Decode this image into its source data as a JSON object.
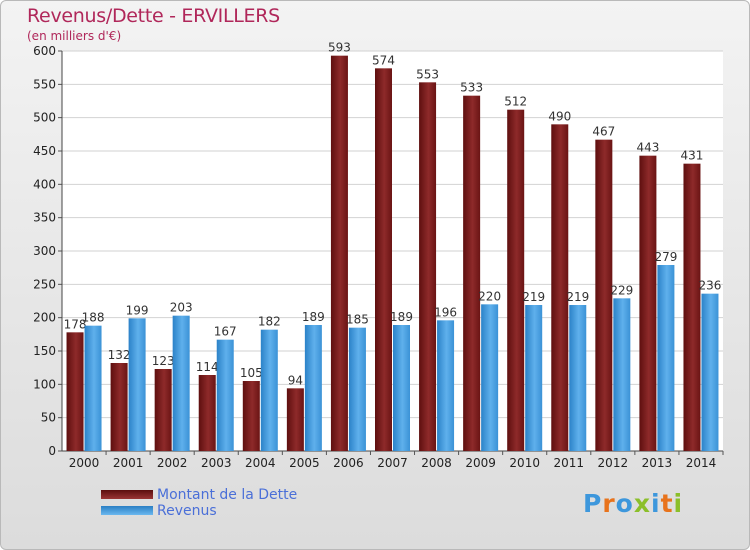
{
  "chart_data": {
    "type": "bar",
    "title": "Revenus/Dette - ERVILLERS",
    "subtitle": "(en milliers d'€)",
    "categories": [
      "2000",
      "2001",
      "2002",
      "2003",
      "2004",
      "2005",
      "2006",
      "2007",
      "2008",
      "2009",
      "2010",
      "2011",
      "2012",
      "2013",
      "2014"
    ],
    "series": [
      {
        "name": "Montant de la Dette",
        "color": "#7a1c1c",
        "values": [
          178,
          132,
          123,
          114,
          105,
          94,
          593,
          574,
          553,
          533,
          512,
          490,
          467,
          443,
          431
        ]
      },
      {
        "name": "Revenus",
        "color": "#3d97dc",
        "values": [
          188,
          199,
          203,
          167,
          182,
          189,
          185,
          189,
          196,
          220,
          219,
          219,
          229,
          279,
          236
        ]
      }
    ],
    "ylim": [
      0,
      600
    ],
    "yticks": [
      0,
      50,
      100,
      150,
      200,
      250,
      300,
      350,
      400,
      450,
      500,
      550,
      600
    ],
    "grid": true,
    "legend_position": "bottom-left"
  },
  "logo": {
    "letters": [
      "P",
      "r",
      "o",
      "x",
      "i",
      "t",
      "i"
    ],
    "colors": [
      "#3d97dc",
      "#e8731c",
      "#3d97dc",
      "#8bbf2a",
      "#3d97dc",
      "#e8731c",
      "#8bbf2a"
    ]
  }
}
